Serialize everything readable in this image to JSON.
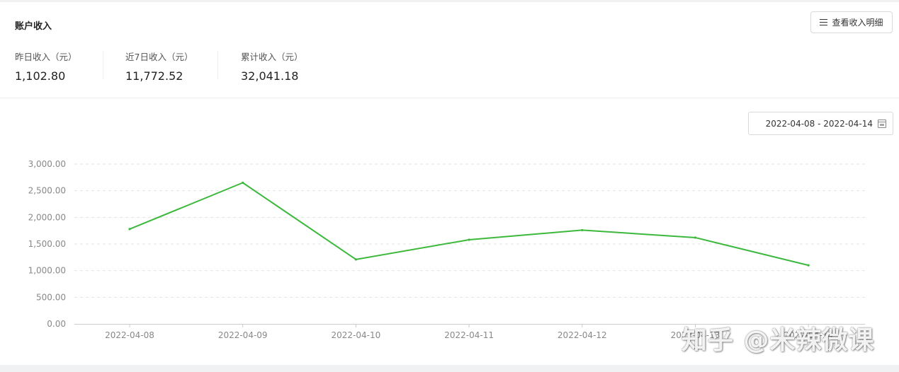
{
  "header": {
    "title": "账户收入",
    "detail_button_label": "查看收入明细"
  },
  "stats": [
    {
      "label": "昨日收入（元）",
      "value": "1,102.80"
    },
    {
      "label": "近7日收入（元）",
      "value": "11,772.52"
    },
    {
      "label": "累计收入（元）",
      "value": "32,041.18"
    }
  ],
  "date_range": {
    "value": "2022-04-08 - 2022-04-14"
  },
  "icons": {
    "detail_button": "list-icon",
    "date_range": "calendar-icon"
  },
  "watermark": "知乎 @米辣微课",
  "colors": {
    "line": "#3db83d",
    "grid": "#e3e3e3",
    "axis_text": "#888888"
  },
  "chart_data": {
    "type": "line",
    "x": [
      "2022-04-08",
      "2022-04-09",
      "2022-04-10",
      "2022-04-11",
      "2022-04-12",
      "2022-04-13",
      "2022-04-14"
    ],
    "series": [
      {
        "values": [
          1780,
          2650,
          1210,
          1580,
          1760,
          1620,
          1100
        ]
      }
    ],
    "y_ticks": [
      "0.00",
      "500.00",
      "1,000.00",
      "1,500.00",
      "2,000.00",
      "2,500.00",
      "3,000.00"
    ],
    "ylim": [
      0,
      3000
    ],
    "grid": true,
    "title": "",
    "xlabel": "",
    "ylabel": ""
  }
}
